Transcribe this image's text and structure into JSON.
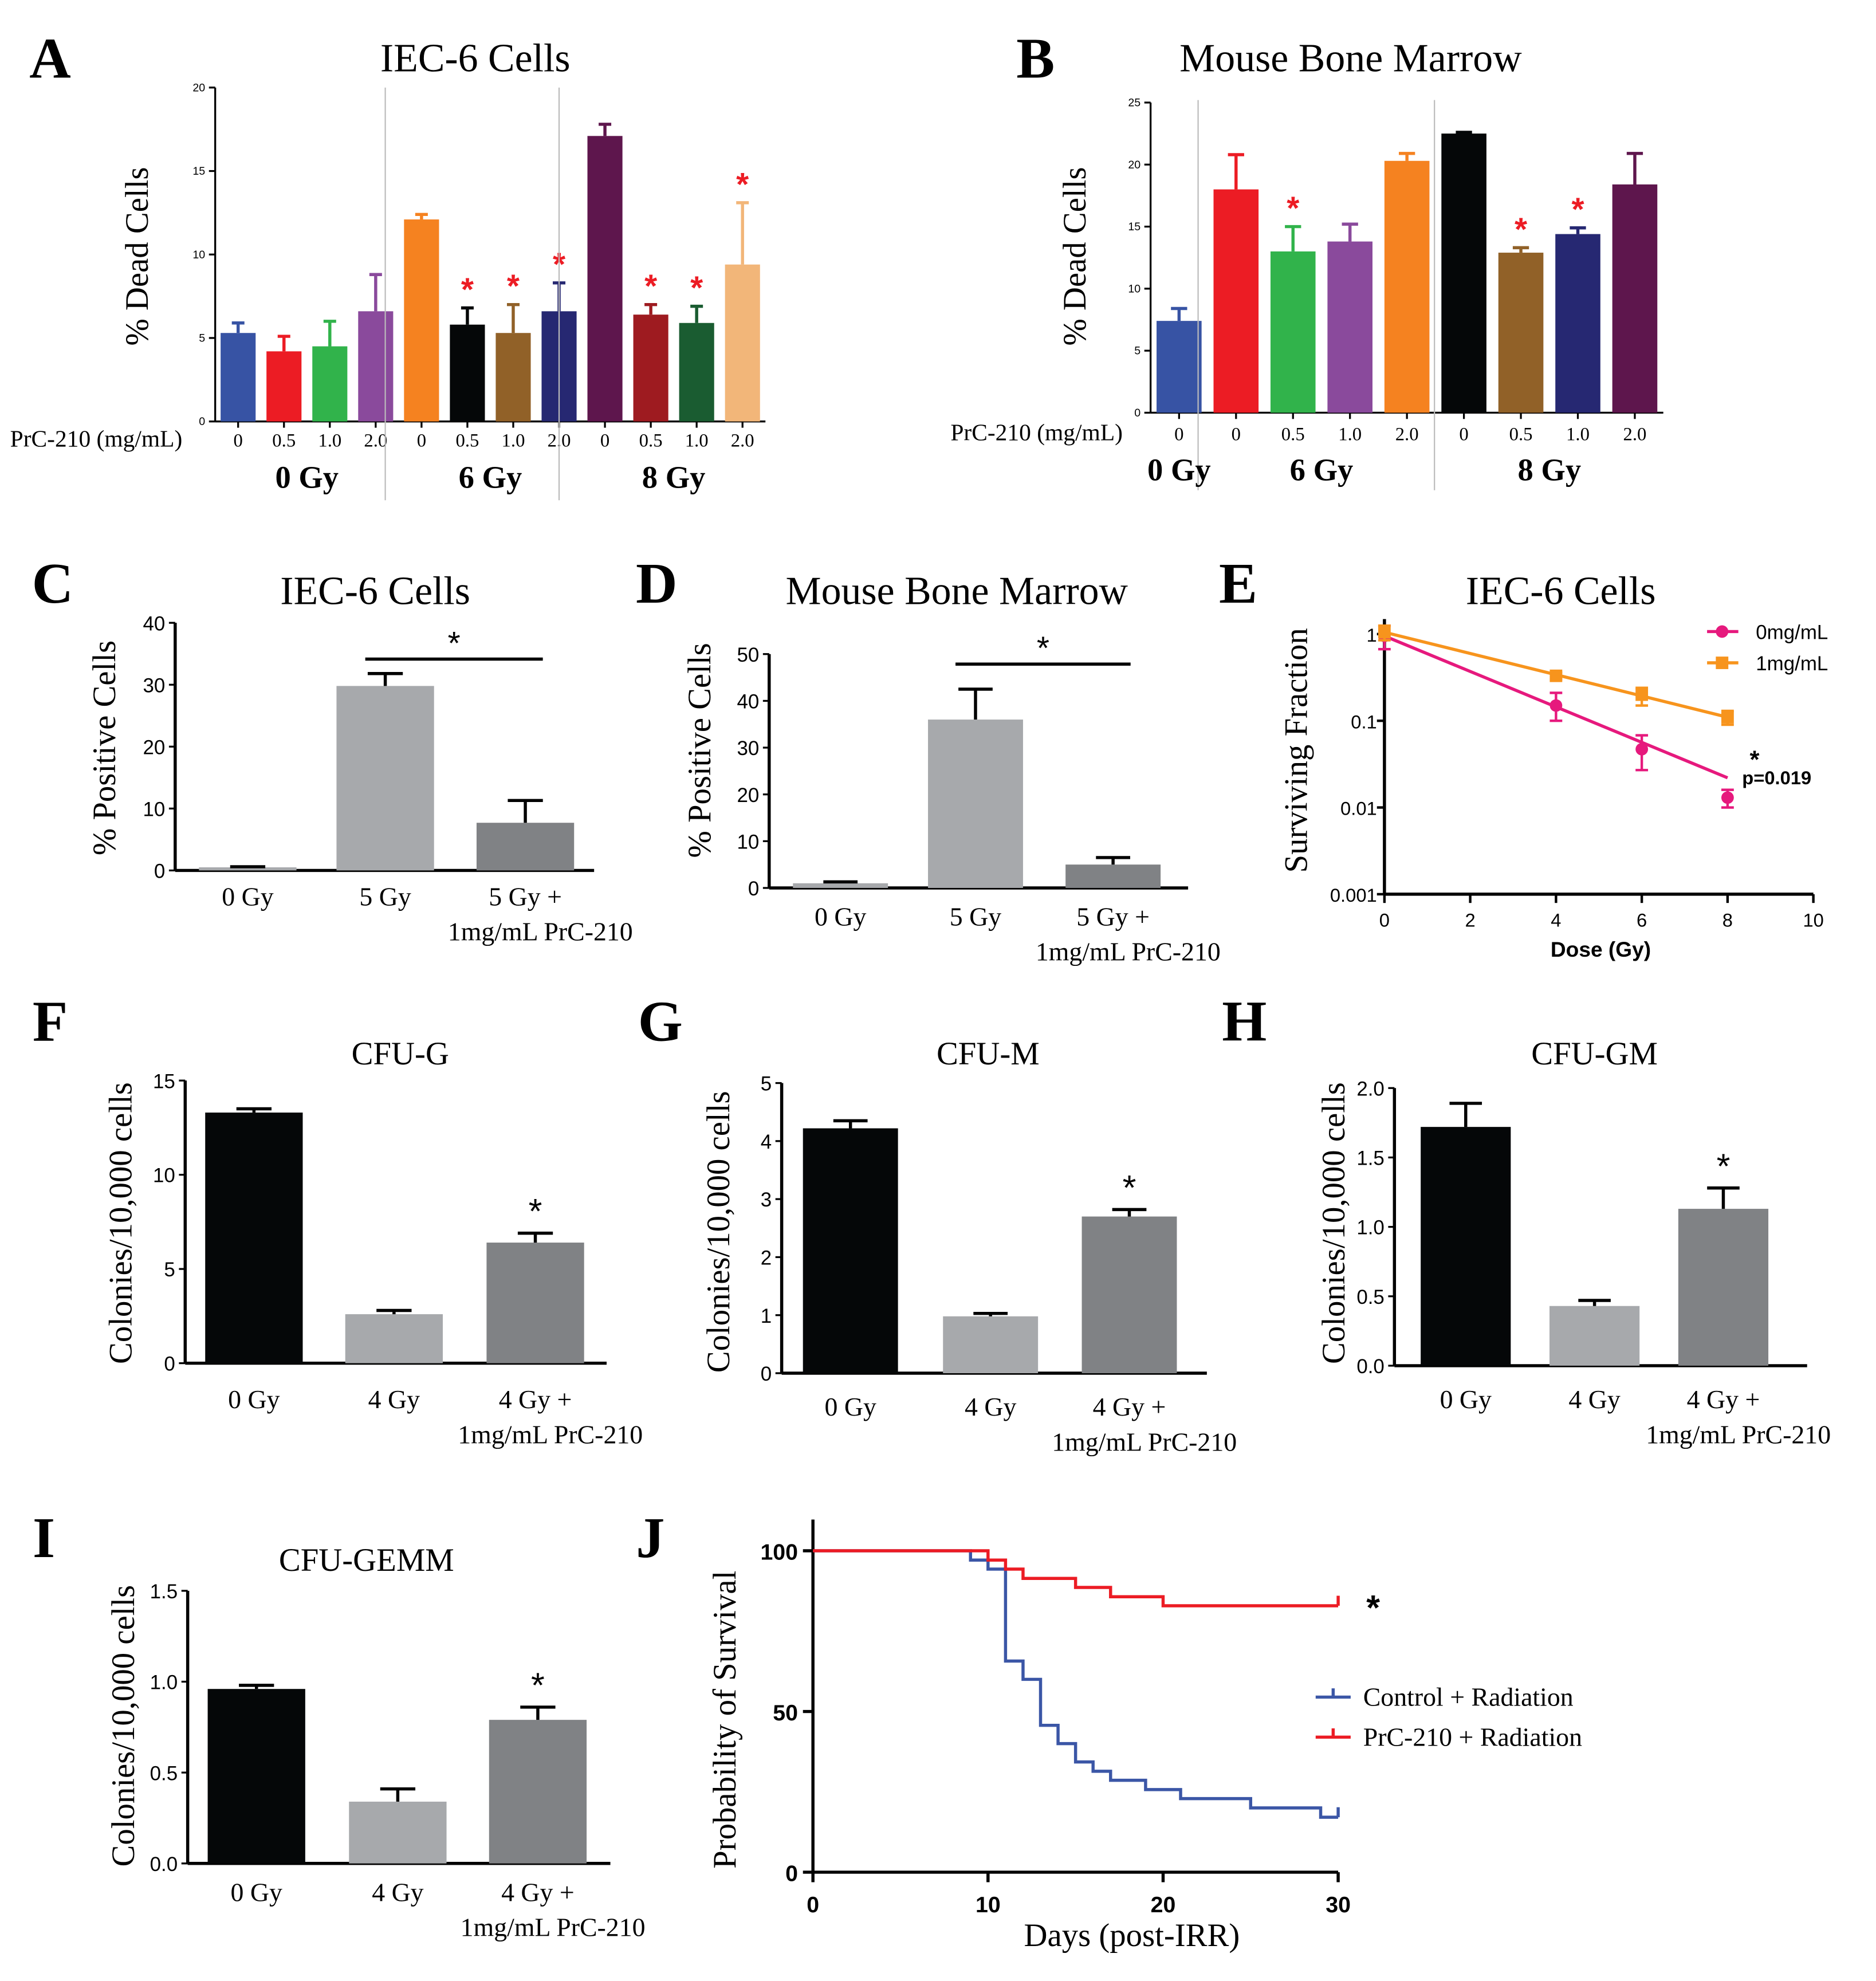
{
  "chart_data": [
    {
      "id": "A",
      "type": "bar",
      "letter": "A",
      "title": "IEC-6 Cells",
      "ylabel": "% Dead Cells",
      "ylim": [
        0,
        20
      ],
      "yticks": [
        "0",
        "5",
        "10",
        "15",
        "20"
      ],
      "xprefix": "PrC-210 (mg/mL)",
      "groups": [
        {
          "label": "0 Gy",
          "bars": [
            {
              "category": "0",
              "value": 5.3,
              "error": 0.6,
              "color": "#3753a4",
              "significant": false
            },
            {
              "category": "0.5",
              "value": 4.2,
              "error": 0.9,
              "color": "#ec1c24",
              "significant": false
            },
            {
              "category": "1.0",
              "value": 4.5,
              "error": 1.5,
              "color": "#31b34b",
              "significant": false
            },
            {
              "category": "2.0",
              "value": 6.6,
              "error": 2.2,
              "color": "#8a4a9c",
              "significant": false
            }
          ]
        },
        {
          "label": "6 Gy",
          "bars": [
            {
              "category": "0",
              "value": 12.1,
              "error": 0.3,
              "color": "#f58220",
              "significant": false
            },
            {
              "category": "0.5",
              "value": 5.8,
              "error": 1.0,
              "color": "#050708",
              "significant": true
            },
            {
              "category": "1.0",
              "value": 5.3,
              "error": 1.7,
              "color": "#916128",
              "significant": true
            },
            {
              "category": "2.0",
              "value": 6.6,
              "error": 1.7,
              "color": "#262872",
              "significant": true
            }
          ]
        },
        {
          "label": "8 Gy",
          "bars": [
            {
              "category": "0",
              "value": 17.1,
              "error": 0.7,
              "color": "#5e164d",
              "significant": false
            },
            {
              "category": "0.5",
              "value": 6.4,
              "error": 0.6,
              "color": "#9e1b20",
              "significant": true
            },
            {
              "category": "1.0",
              "value": 5.9,
              "error": 1.0,
              "color": "#1a5c31",
              "significant": true
            },
            {
              "category": "2.0",
              "value": 9.4,
              "error": 3.7,
              "color": "#f2b679",
              "significant": true
            }
          ]
        }
      ],
      "sig_mark": "*",
      "sig_color": "#ec1c24"
    },
    {
      "id": "B",
      "type": "bar",
      "letter": "B",
      "title": "Mouse Bone Marrow",
      "ylabel": "% Dead Cells",
      "ylim": [
        0,
        25
      ],
      "yticks": [
        "0",
        "5",
        "10",
        "15",
        "20",
        "25"
      ],
      "xprefix": "PrC-210 (mg/mL)",
      "groups": [
        {
          "label": "0 Gy",
          "bars": [
            {
              "category": "0",
              "value": 7.4,
              "error": 1.0,
              "color": "#3753a4",
              "significant": false
            }
          ]
        },
        {
          "label": "6 Gy",
          "bars": [
            {
              "category": "0",
              "value": 18.0,
              "error": 2.8,
              "color": "#ec1c24",
              "significant": false
            },
            {
              "category": "0.5",
              "value": 13.0,
              "error": 2.0,
              "color": "#31b34b",
              "significant": true
            },
            {
              "category": "1.0",
              "value": 13.8,
              "error": 1.4,
              "color": "#8a4a9c",
              "significant": false
            },
            {
              "category": "2.0",
              "value": 20.3,
              "error": 0.6,
              "color": "#f58220",
              "significant": false
            }
          ]
        },
        {
          "label": "8 Gy",
          "bars": [
            {
              "category": "0",
              "value": 22.5,
              "error": 0.1,
              "color": "#050708",
              "significant": false
            },
            {
              "category": "0.5",
              "value": 12.9,
              "error": 0.4,
              "color": "#916128",
              "significant": true
            },
            {
              "category": "1.0",
              "value": 14.4,
              "error": 0.5,
              "color": "#262872",
              "significant": true
            },
            {
              "category": "2.0",
              "value": 18.4,
              "error": 2.5,
              "color": "#5e164d",
              "significant": false
            }
          ]
        }
      ],
      "sig_mark": "*",
      "sig_color": "#ec1c24"
    },
    {
      "id": "C",
      "type": "bar",
      "letter": "C",
      "title": "IEC-6 Cells",
      "ylabel": "% Positive Cells",
      "ylim": [
        0,
        40
      ],
      "yticks": [
        "0",
        "10",
        "20",
        "30",
        "40"
      ],
      "bars": [
        {
          "category": [
            "0 Gy"
          ],
          "value": 0.5,
          "error": 0.1,
          "color": "#a7a9ac"
        },
        {
          "category": [
            "5 Gy"
          ],
          "value": 29.8,
          "error": 2.0,
          "color": "#a7a9ac"
        },
        {
          "category": [
            "5 Gy +",
            "1mg/mL PrC-210"
          ],
          "value": 7.7,
          "error": 3.6,
          "color": "#808285"
        }
      ],
      "significance": {
        "from": 1,
        "to": 2,
        "mark": "*"
      }
    },
    {
      "id": "D",
      "type": "bar",
      "letter": "D",
      "title": "Mouse Bone Marrow",
      "ylabel": "% Positive Cells",
      "ylim": [
        0,
        50
      ],
      "yticks": [
        "0",
        "10",
        "20",
        "30",
        "40",
        "50"
      ],
      "bars": [
        {
          "category": [
            "0 Gy"
          ],
          "value": 1.0,
          "error": 0.3,
          "color": "#a7a9ac"
        },
        {
          "category": [
            "5 Gy"
          ],
          "value": 36.0,
          "error": 6.5,
          "color": "#a7a9ac"
        },
        {
          "category": [
            "5 Gy +",
            "1mg/mL PrC-210"
          ],
          "value": 5.0,
          "error": 1.5,
          "color": "#808285"
        }
      ],
      "significance": {
        "from": 1,
        "to": 2,
        "mark": "*"
      }
    },
    {
      "id": "E",
      "type": "line",
      "letter": "E",
      "title": "IEC-6 Cells",
      "ylabel": "Surviving Fraction",
      "xlabel": "Dose (Gy)",
      "yscale": "log",
      "ylim": [
        0.001,
        1
      ],
      "yticks": [
        "0.001",
        "0.01",
        "0.1",
        "1"
      ],
      "xlim": [
        0,
        10
      ],
      "xticks": [
        "0",
        "2",
        "4",
        "6",
        "8",
        "10"
      ],
      "series": [
        {
          "name": "0mg/mL",
          "color": "#e6197d",
          "marker": "circle",
          "x": [
            0,
            4,
            6,
            8
          ],
          "y": [
            0.95,
            0.15,
            0.047,
            0.013
          ],
          "err_low": [
            0.67,
            0.1,
            0.027,
            0.01
          ],
          "err_high": [
            1.25,
            0.21,
            0.068,
            0.016
          ],
          "fit": [
            [
              0,
              0.95
            ],
            [
              8,
              0.022
            ]
          ]
        },
        {
          "name": "1mg/mL",
          "color": "#f7941d",
          "marker": "square",
          "x": [
            0,
            4,
            6,
            8
          ],
          "y": [
            1.05,
            0.33,
            0.2,
            0.11
          ],
          "err_low": [
            0.85,
            0.3,
            0.15,
            0.09
          ],
          "err_high": [
            1.25,
            0.36,
            0.24,
            0.13
          ],
          "fit": [
            [
              0,
              1.05
            ],
            [
              8,
              0.11
            ]
          ]
        }
      ],
      "annotation": {
        "mark": "*",
        "text": "p=0.019"
      },
      "legend": "top-right"
    },
    {
      "id": "F",
      "type": "bar",
      "letter": "F",
      "title": "CFU-G",
      "ylabel": "Colonies/10,000 cells",
      "ylim": [
        0,
        15
      ],
      "yticks": [
        "0",
        "5",
        "10",
        "15"
      ],
      "bars": [
        {
          "category": [
            "0 Gy"
          ],
          "value": 13.3,
          "error": 0.2,
          "color": "#050708"
        },
        {
          "category": [
            "4 Gy"
          ],
          "value": 2.6,
          "error": 0.2,
          "color": "#a7a9ac"
        },
        {
          "category": [
            "4 Gy +",
            "1mg/mL PrC-210"
          ],
          "value": 6.4,
          "error": 0.5,
          "color": "#808285",
          "mark": "*"
        }
      ]
    },
    {
      "id": "G",
      "type": "bar",
      "letter": "G",
      "title": "CFU-M",
      "ylabel": "Colonies/10,000 cells",
      "ylim": [
        0,
        5
      ],
      "yticks": [
        "0",
        "1",
        "2",
        "3",
        "4",
        "5"
      ],
      "bars": [
        {
          "category": [
            "0 Gy"
          ],
          "value": 4.22,
          "error": 0.13,
          "color": "#050708"
        },
        {
          "category": [
            "4 Gy"
          ],
          "value": 0.98,
          "error": 0.05,
          "color": "#a7a9ac"
        },
        {
          "category": [
            "4 Gy +",
            "1mg/mL PrC-210"
          ],
          "value": 2.7,
          "error": 0.12,
          "color": "#808285",
          "mark": "*"
        }
      ]
    },
    {
      "id": "H",
      "type": "bar",
      "letter": "H",
      "title": "CFU-GM",
      "ylabel": "Colonies/10,000 cells",
      "ylim": [
        0,
        2
      ],
      "yticks": [
        "0.0",
        "0.5",
        "1.0",
        "1.5",
        "2.0"
      ],
      "bars": [
        {
          "category": [
            "0 Gy"
          ],
          "value": 1.72,
          "error": 0.17,
          "color": "#050708"
        },
        {
          "category": [
            "4 Gy"
          ],
          "value": 0.43,
          "error": 0.04,
          "color": "#a7a9ac"
        },
        {
          "category": [
            "4 Gy +",
            "1mg/mL PrC-210"
          ],
          "value": 1.13,
          "error": 0.15,
          "color": "#808285",
          "mark": "*"
        }
      ]
    },
    {
      "id": "I",
      "type": "bar",
      "letter": "I",
      "title": "CFU-GEMM",
      "ylabel": "Colonies/10,000 cells",
      "ylim": [
        0,
        1.5
      ],
      "yticks": [
        "0.0",
        "0.5",
        "1.0",
        "1.5"
      ],
      "bars": [
        {
          "category": [
            "0 Gy"
          ],
          "value": 0.96,
          "error": 0.02,
          "color": "#050708"
        },
        {
          "category": [
            "4 Gy"
          ],
          "value": 0.34,
          "error": 0.07,
          "color": "#a7a9ac"
        },
        {
          "category": [
            "4 Gy +",
            "1mg/mL PrC-210"
          ],
          "value": 0.79,
          "error": 0.07,
          "color": "#808285",
          "mark": "*"
        }
      ]
    },
    {
      "id": "J",
      "type": "line",
      "subtype": "step",
      "letter": "J",
      "ylabel": "Probability of Survival",
      "xlabel": "Days (post-IRR)",
      "xlim": [
        0,
        30
      ],
      "xticks": [
        "0",
        "10",
        "20",
        "30"
      ],
      "ylim": [
        0,
        100
      ],
      "yticks": [
        "0",
        "50",
        "100"
      ],
      "series": [
        {
          "name": "Control + Radiation",
          "color": "#3b56a6",
          "steps": [
            [
              0,
              100
            ],
            [
              9,
              97.1
            ],
            [
              10,
              94.3
            ],
            [
              11,
              65.7
            ],
            [
              12,
              60
            ],
            [
              13,
              45.7
            ],
            [
              14,
              40
            ],
            [
              15,
              34.3
            ],
            [
              16,
              31.4
            ],
            [
              17,
              28.6
            ],
            [
              19,
              25.7
            ],
            [
              21,
              22.9
            ],
            [
              25,
              20
            ],
            [
              29,
              17.1
            ],
            [
              30,
              17.1
            ]
          ]
        },
        {
          "name": "PrC-210 + Radiation",
          "color": "#ec1c24",
          "steps": [
            [
              0,
              100
            ],
            [
              10,
              97.1
            ],
            [
              11,
              94.3
            ],
            [
              12,
              91.4
            ],
            [
              15,
              88.6
            ],
            [
              17,
              85.7
            ],
            [
              20,
              82.9
            ],
            [
              30,
              82.9
            ]
          ]
        }
      ],
      "annotation": {
        "mark": "*"
      },
      "legend": "right"
    }
  ]
}
